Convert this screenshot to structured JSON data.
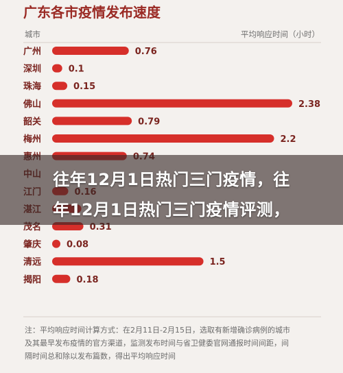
{
  "chart_data": {
    "type": "bar",
    "orientation": "horizontal",
    "title": "广东各市疫情发布速度",
    "xlabel": "平均响应时间（小时）",
    "ylabel": "城市",
    "color": "#d62f2a",
    "categories": [
      "广州",
      "深圳",
      "珠海",
      "佛山",
      "韶关",
      "梅州",
      "惠州",
      "中山",
      "江门",
      "湛江",
      "茂名",
      "肇庆",
      "清远",
      "揭阳"
    ],
    "values": [
      0.76,
      0.1,
      0.15,
      2.38,
      0.79,
      2.2,
      0.74,
      null,
      0.16,
      0.29,
      0.31,
      0.08,
      1.5,
      0.18
    ],
    "labels": [
      "0.76",
      "0.1",
      "0.15",
      "2.38",
      "0.79",
      "2.2",
      "0.74",
      "",
      "0.16",
      "",
      "0.31",
      "0.08",
      "1.5",
      "0.18"
    ],
    "xlim": [
      0,
      2.38
    ],
    "note": [
      "注：平均响应时间计算方式：在2月11日-2月15日，选取有新增确诊病例的城市",
      "及其最早发布疫情的官方渠道，监测发布时间与省卫健委官网通报时间间距，间",
      "隔时间总和除以发布篇数，得出平均响应时间"
    ]
  },
  "banner": {
    "line1": "往年12月1日热门三门疫情，往",
    "line2": "年12月1日热门三门疫情评测，"
  }
}
